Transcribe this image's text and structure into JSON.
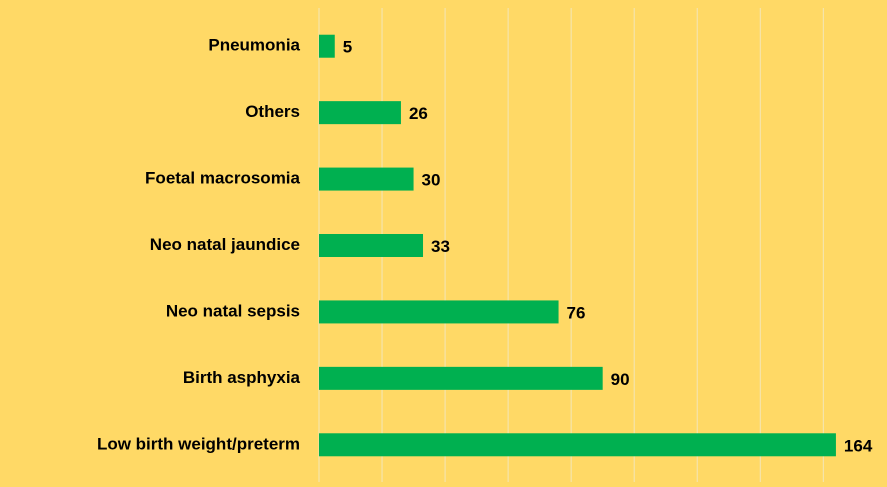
{
  "chart_data": {
    "type": "bar",
    "orientation": "horizontal",
    "categories": [
      "Pneumonia",
      "Others",
      "Foetal macrosomia",
      "Neo natal jaundice",
      "Neo natal sepsis",
      "Birth asphyxia",
      "Low birth weight/preterm"
    ],
    "values": [
      5,
      26,
      30,
      33,
      76,
      90,
      164
    ],
    "color": "#00b050",
    "xlim": [
      0,
      180
    ],
    "xticks": [
      0,
      20,
      40,
      60,
      80,
      100,
      120,
      140,
      160
    ],
    "grid": true
  }
}
